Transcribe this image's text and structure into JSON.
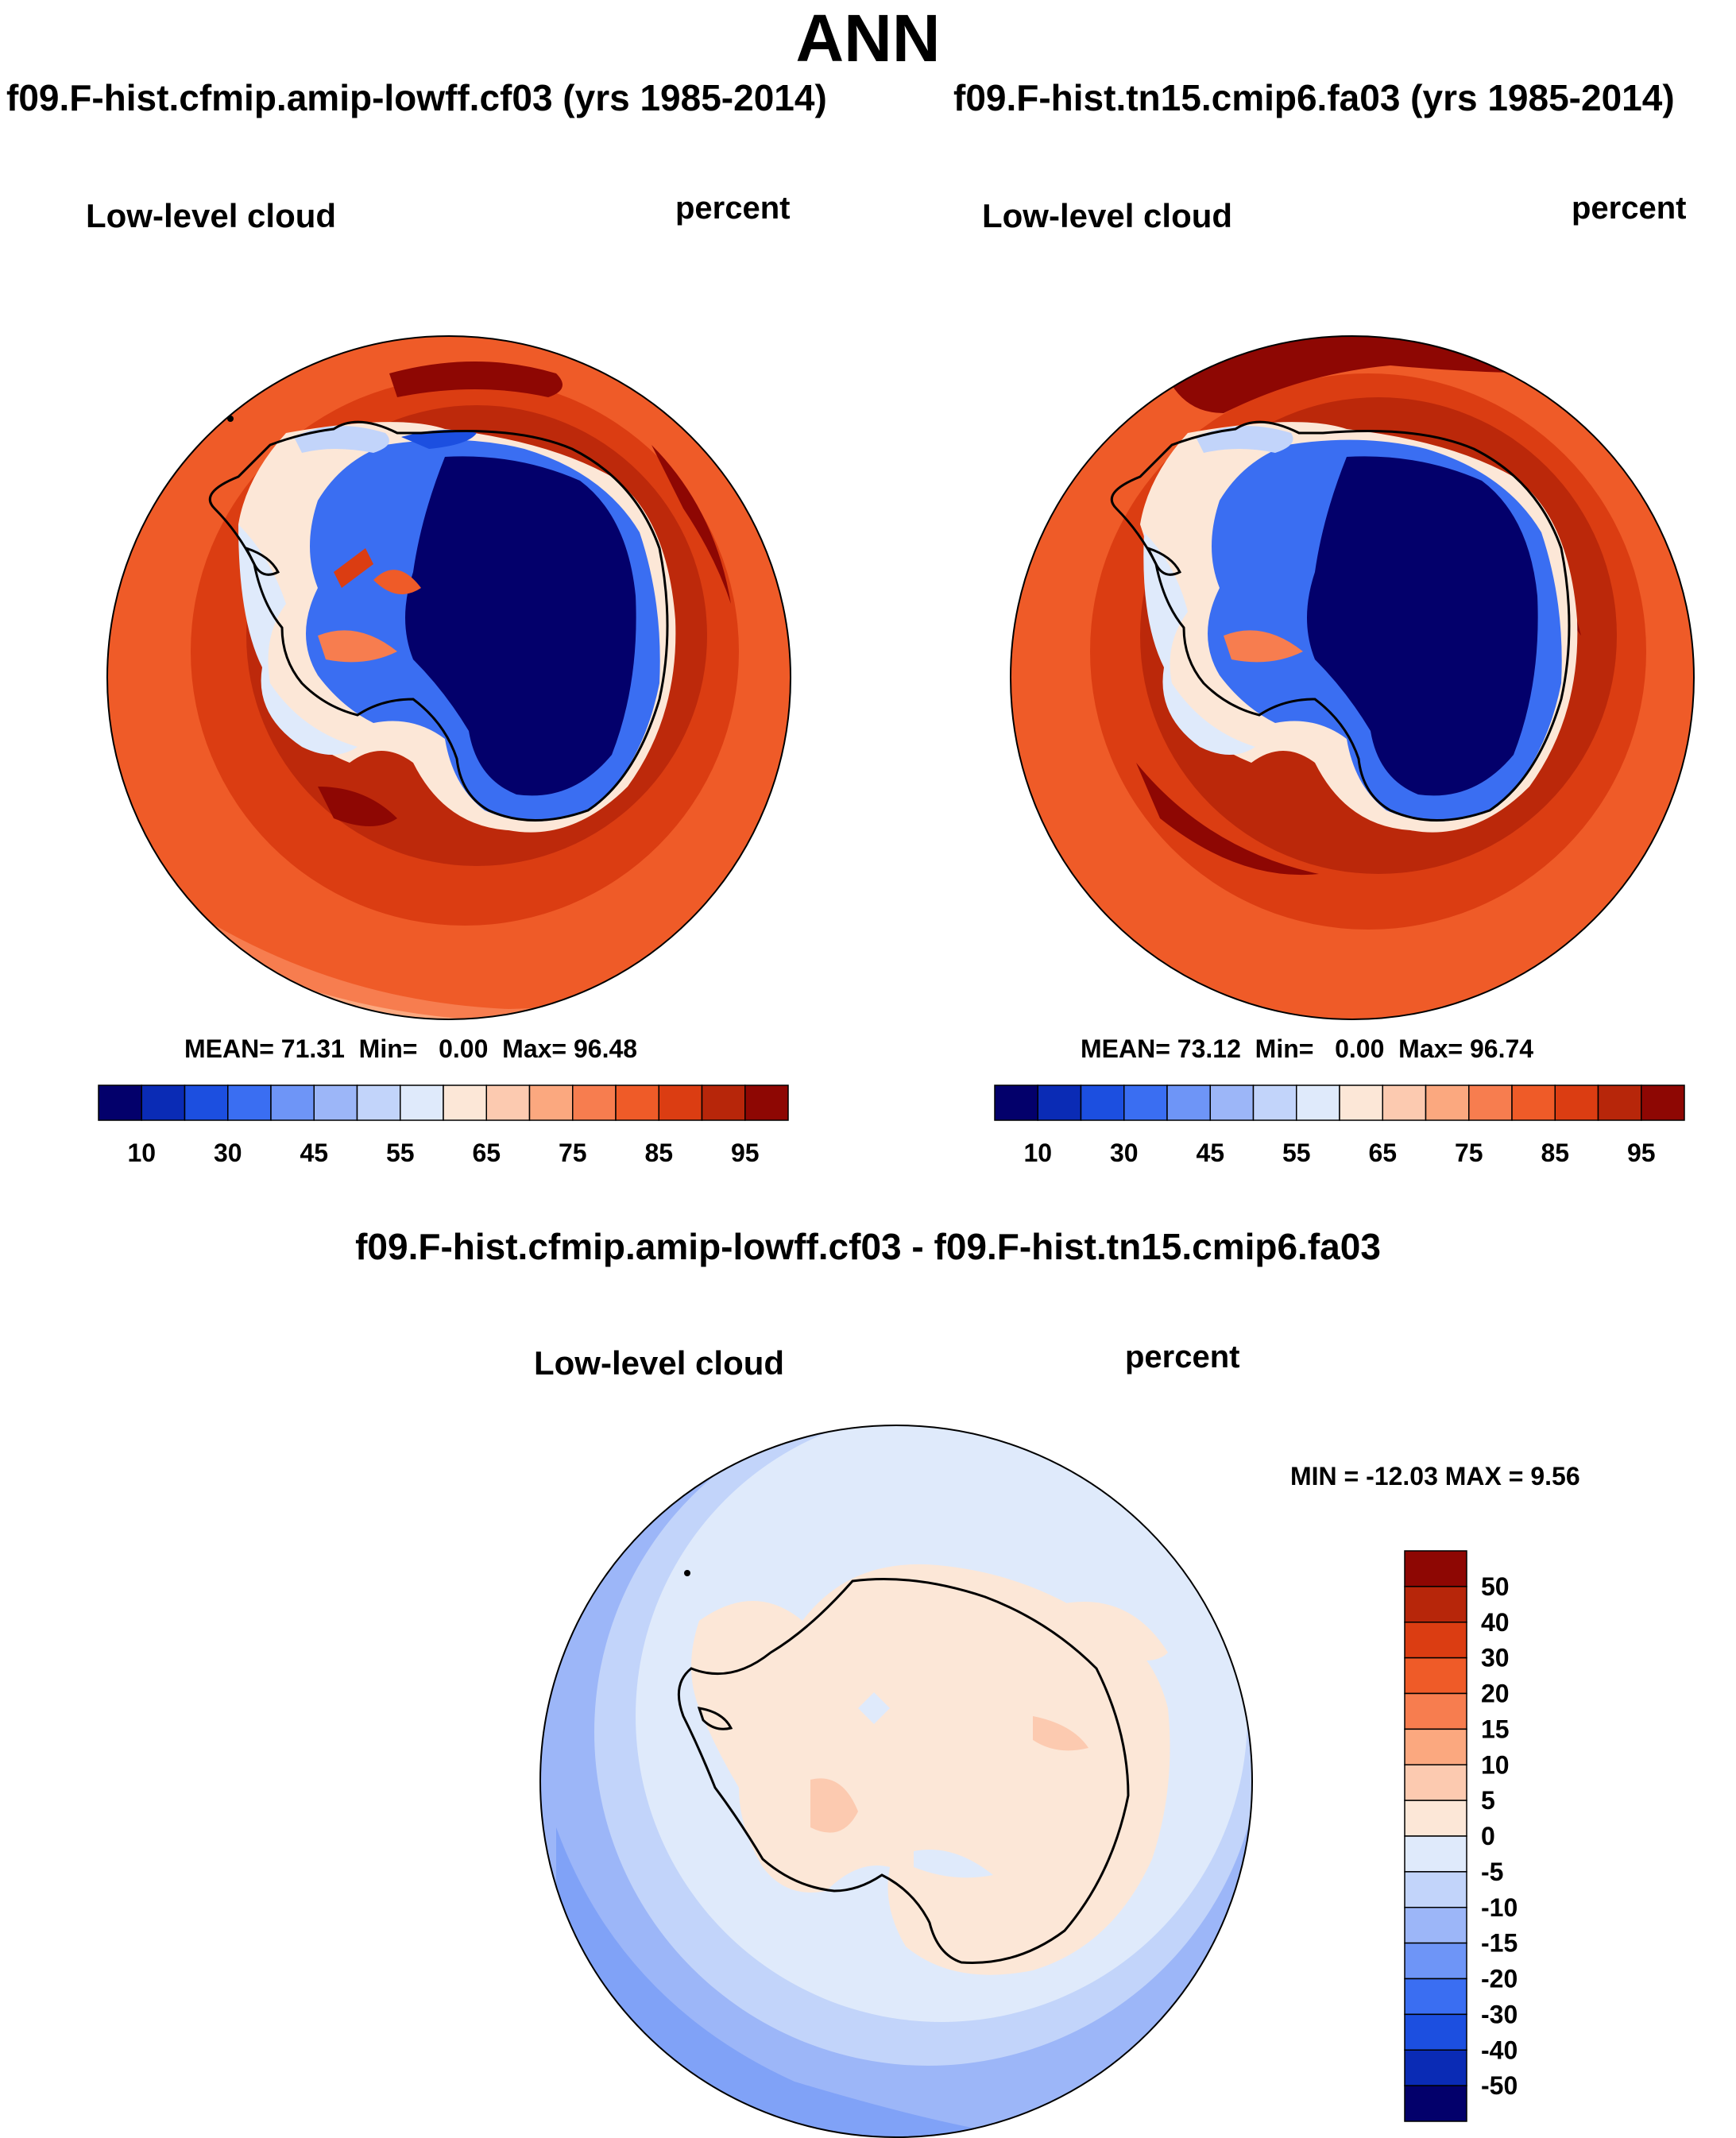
{
  "title": "ANN",
  "panels": [
    {
      "case_title": "f09.F-hist.cfmip.amip-lowff.cf03 (yrs 1985-2014)",
      "field": "Low-level cloud",
      "units": "percent",
      "stats": {
        "mean_label": "MEAN=",
        "mean": "71.31",
        "min_label": "Min=",
        "min": "0.00",
        "max_label": "Max=",
        "max": "96.48"
      }
    },
    {
      "case_title": "f09.F-hist.tn15.cmip6.fa03 (yrs 1985-2014)",
      "field": "Low-level cloud",
      "units": "percent",
      "stats": {
        "mean_label": "MEAN=",
        "mean": "73.12",
        "min_label": "Min=",
        "min": "0.00",
        "max_label": "Max=",
        "max": "96.74"
      }
    }
  ],
  "diff_panel": {
    "title": "f09.F-hist.cfmip.amip-lowff.cf03 - f09.F-hist.tn15.cmip6.fa03",
    "field": "Low-level cloud",
    "units": "percent",
    "minmax": "MIN = -12.03 MAX =   9.56"
  },
  "chart_data": [
    {
      "type": "heatmap",
      "projection": "south-polar-stereographic",
      "title": "f09.F-hist.cfmip.amip-lowff.cf03 (yrs 1985-2014)",
      "variable": "Low-level cloud",
      "units": "percent",
      "mean": 71.31,
      "min": 0.0,
      "max": 96.48,
      "colorbar_labels": [
        "10",
        "30",
        "45",
        "55",
        "65",
        "75",
        "85",
        "95"
      ],
      "colorbar_colors": [
        "#03006b",
        "#0a2bb5",
        "#1c4fe0",
        "#3a6ef2",
        "#6e95f7",
        "#9cb6f8",
        "#c2d4fa",
        "#dfeafb",
        "#fce7d7",
        "#fccab0",
        "#fba87f",
        "#f77d4f",
        "#ef5b28",
        "#db3d12",
        "#b7260a",
        "#8e0703"
      ]
    },
    {
      "type": "heatmap",
      "projection": "south-polar-stereographic",
      "title": "f09.F-hist.tn15.cmip6.fa03 (yrs 1985-2014)",
      "variable": "Low-level cloud",
      "units": "percent",
      "mean": 73.12,
      "min": 0.0,
      "max": 96.74,
      "colorbar_labels": [
        "10",
        "30",
        "45",
        "55",
        "65",
        "75",
        "85",
        "95"
      ],
      "colorbar_colors": [
        "#03006b",
        "#0a2bb5",
        "#1c4fe0",
        "#3a6ef2",
        "#6e95f7",
        "#9cb6f8",
        "#c2d4fa",
        "#dfeafb",
        "#fce7d7",
        "#fccab0",
        "#fba87f",
        "#f77d4f",
        "#ef5b28",
        "#db3d12",
        "#b7260a",
        "#8e0703"
      ]
    },
    {
      "type": "heatmap",
      "projection": "south-polar-stereographic",
      "title": "f09.F-hist.cfmip.amip-lowff.cf03 - f09.F-hist.tn15.cmip6.fa03",
      "variable": "Low-level cloud",
      "units": "percent",
      "min": -12.03,
      "max": 9.56,
      "colorbar_labels": [
        "50",
        "40",
        "30",
        "20",
        "15",
        "10",
        "5",
        "0",
        "-5",
        "-10",
        "-15",
        "-20",
        "-30",
        "-40",
        "-50"
      ],
      "colorbar_colors": [
        "#8e0703",
        "#b7260a",
        "#db3d12",
        "#ef5b28",
        "#f77d4f",
        "#fba87f",
        "#fccab0",
        "#fce7d7",
        "#dfeafb",
        "#c2d4fa",
        "#9cb6f8",
        "#6e95f7",
        "#3a6ef2",
        "#1c4fe0",
        "#0a2bb5",
        "#03006b"
      ]
    }
  ]
}
